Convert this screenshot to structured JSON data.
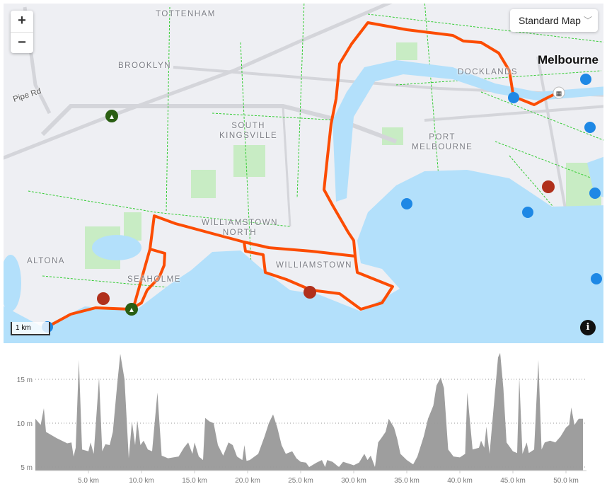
{
  "map": {
    "zoom_in": "+",
    "zoom_out": "−",
    "style_selector": {
      "selected": "Standard Map",
      "icon": "chevron-down-icon"
    },
    "scale_label": "1 km",
    "info_icon": "i",
    "city_label": "Melbourne",
    "place_labels": [
      "TOTTENHAM",
      "BROOKLYN",
      "SOUTH\nKINGSVILLE",
      "DOCKLANDS",
      "PORT\nMELBOURNE",
      "WILLIAMSTOWN\nNORTH",
      "WILLIAMSTOWN",
      "ALTONA",
      "SEAHOLME"
    ],
    "road_labels": [
      "Pipe Rd"
    ],
    "colors": {
      "route": "#fc4c02",
      "water": "#b3e0fb",
      "land": "#eeeff3",
      "park": "#c8ecc4",
      "bike_path": "#33cc33",
      "camera": "#1e88e5",
      "cafe": "#b0301c",
      "tree": "#2a5e12"
    },
    "markers": [
      "camera-icon",
      "cafe-icon",
      "tree-icon",
      "start-finish-icon"
    ]
  },
  "chart_data": {
    "type": "area",
    "title": "",
    "xlabel": "",
    "ylabel": "",
    "x_unit": "km",
    "y_unit": "m",
    "xlim": [
      0,
      51.8
    ],
    "ylim": [
      4.6,
      18.5
    ],
    "x_ticks": [
      "5.0 km",
      "10.0 km",
      "15.0 km",
      "20.0 km",
      "25.0 km",
      "30.0 km",
      "35.0 km",
      "40.0 km",
      "45.0 km",
      "50.0 km"
    ],
    "x_tick_values": [
      5,
      10,
      15,
      20,
      25,
      30,
      35,
      40,
      45,
      50
    ],
    "y_ticks": [
      "5 m",
      "10 m",
      "15 m"
    ],
    "y_tick_values": [
      5,
      10,
      15
    ],
    "grid": true,
    "color": "#9e9e9e",
    "distance_km": [
      0,
      0.5,
      0.8,
      1.0,
      2,
      3,
      3.4,
      3.6,
      3.8,
      4.1,
      4.4,
      5,
      5.2,
      5.5,
      6.0,
      6.3,
      6.6,
      7,
      7.3,
      7.7,
      8.0,
      8.4,
      8.8,
      9.1,
      9.4,
      9.6,
      9.9,
      10.2,
      10.6,
      11.0,
      11.5,
      11.9,
      12.5,
      13.5,
      14,
      14.4,
      14.8,
      15.0,
      15.4,
      15.8,
      16.0,
      16.4,
      16.8,
      17.2,
      17.7,
      18.2,
      18.6,
      19.0,
      19.5,
      19.7,
      19.9,
      20.2,
      21,
      21.6,
      22.0,
      22.4,
      22.8,
      23.2,
      23.6,
      24.2,
      24.6,
      25,
      25.5,
      25.8,
      26.5,
      27,
      27.3,
      27.5,
      28,
      28.6,
      29,
      29.5,
      30,
      30.5,
      31,
      31.3,
      31.6,
      32.0,
      32.3,
      32.6,
      33.0,
      33.3,
      33.8,
      34.1,
      34.4,
      35,
      35.6,
      36,
      36.6,
      37.0,
      37.5,
      37.8,
      38.2,
      38.5,
      38.9,
      39.4,
      40,
      40.5,
      40.7,
      41.2,
      41.8,
      42.0,
      42.3,
      42.5,
      42.8,
      43.2,
      43.6,
      43.8,
      44.1,
      44.4,
      45.0,
      45.4,
      45.6,
      45.9,
      46.3,
      46.5,
      47.0,
      47.4,
      47.7,
      48.0,
      48.5,
      49,
      49.5,
      50,
      50.3,
      50.5,
      50.8,
      51.2,
      51.6
    ],
    "elevation_m": [
      10.5,
      9.8,
      11.7,
      9,
      8.3,
      7.7,
      7.8,
      6.2,
      7.2,
      17.2,
      7,
      6.8,
      7.8,
      6.5,
      15.2,
      6.8,
      7.6,
      7.5,
      9,
      14.3,
      17.9,
      15,
      6,
      10.2,
      7.5,
      10.3,
      7.5,
      8,
      7,
      6.8,
      13.5,
      6.3,
      6,
      6.2,
      7.2,
      7.8,
      6.5,
      7.8,
      6.2,
      5.8,
      10.6,
      10.2,
      10,
      7.5,
      6.3,
      7.8,
      7.5,
      6.2,
      5.8,
      7.5,
      5.7,
      5.8,
      6.5,
      8.5,
      10,
      11,
      9.5,
      7.5,
      6.5,
      6.8,
      6,
      5.6,
      5.5,
      5,
      5.5,
      5.8,
      5.0,
      5.8,
      5.6,
      5,
      5.6,
      5.4,
      5.2,
      5.5,
      6.5,
      5.8,
      6.3,
      5.0,
      7.8,
      8.3,
      9,
      10.5,
      9.5,
      8.2,
      6.5,
      5.8,
      5.3,
      6.2,
      8.5,
      10.5,
      12,
      14.3,
      15.2,
      14,
      7,
      6.2,
      6.1,
      6.5,
      13.5,
      7,
      7.2,
      8,
      7.2,
      9.6,
      6.5,
      12,
      17.5,
      18,
      14,
      7.8,
      6.8,
      6.6,
      15.2,
      6.5,
      7.8,
      6.6,
      7,
      17.2,
      7,
      7.8,
      8,
      7.8,
      8.5,
      9.5,
      9.8,
      11.8,
      9.8,
      10.5,
      10.5
    ]
  }
}
